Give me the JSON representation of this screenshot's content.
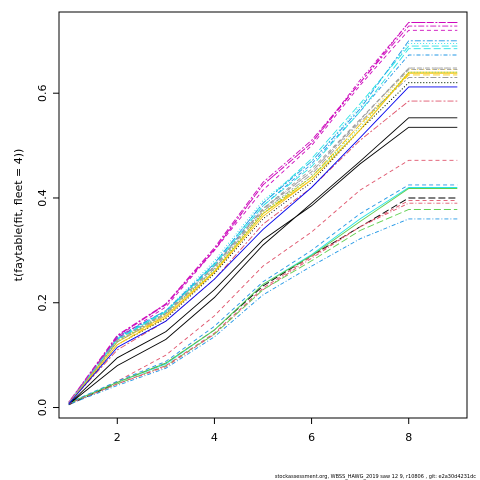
{
  "chart_data": {
    "type": "line",
    "title": "",
    "xlabel": "",
    "ylabel": "t(faytable(fit, fleet = 4))",
    "xlim": [
      0.8,
      9.2
    ],
    "ylim": [
      -0.02,
      0.755
    ],
    "x_ticks": [
      {
        "value": 2,
        "label": "2"
      },
      {
        "value": 4,
        "label": "4"
      },
      {
        "value": 6,
        "label": "6"
      },
      {
        "value": 8,
        "label": "8"
      }
    ],
    "y_ticks": [
      {
        "value": 0.0,
        "label": "0.0"
      },
      {
        "value": 0.2,
        "label": "0.2"
      },
      {
        "value": 0.4,
        "label": "0.4"
      },
      {
        "value": 0.6,
        "label": "0.6"
      }
    ],
    "grid": false,
    "legend": "none",
    "x": [
      1,
      2,
      3,
      4,
      5,
      6,
      7,
      8,
      9
    ],
    "series": [
      {
        "color": "#000000",
        "dash": "solid",
        "values": [
          0.006,
          0.095,
          0.145,
          0.225,
          0.32,
          0.385,
          0.465,
          0.535,
          0.535
        ]
      },
      {
        "color": "#df536b",
        "dash": "dashed",
        "values": [
          0.007,
          0.05,
          0.1,
          0.175,
          0.27,
          0.335,
          0.415,
          0.472,
          0.472
        ]
      },
      {
        "color": "#61d04f",
        "dash": "dotted",
        "values": [
          0.008,
          0.128,
          0.18,
          0.26,
          0.375,
          0.44,
          0.53,
          0.62,
          0.62
        ]
      },
      {
        "color": "#2297e6",
        "dash": "dotdash",
        "values": [
          0.009,
          0.133,
          0.185,
          0.27,
          0.385,
          0.465,
          0.565,
          0.673,
          0.673
        ]
      },
      {
        "color": "#28e2e5",
        "dash": "longdash",
        "values": [
          0.008,
          0.132,
          0.183,
          0.275,
          0.39,
          0.475,
          0.58,
          0.69,
          0.69
        ]
      },
      {
        "color": "#cd0bbc",
        "dash": "twodash",
        "values": [
          0.01,
          0.138,
          0.198,
          0.305,
          0.43,
          0.51,
          0.62,
          0.728,
          0.728
        ]
      },
      {
        "color": "#f5c710",
        "dash": "solid",
        "values": [
          0.008,
          0.125,
          0.175,
          0.26,
          0.37,
          0.435,
          0.53,
          0.64,
          0.64
        ]
      },
      {
        "color": "#9e9e9e",
        "dash": "dashed",
        "values": [
          0.009,
          0.13,
          0.18,
          0.27,
          0.38,
          0.455,
          0.55,
          0.648,
          0.648
        ]
      },
      {
        "color": "#000000",
        "dash": "dotted",
        "values": [
          0.006,
          0.12,
          0.17,
          0.255,
          0.36,
          0.43,
          0.53,
          0.62,
          0.62
        ]
      },
      {
        "color": "#df536b",
        "dash": "dotdash",
        "values": [
          0.006,
          0.045,
          0.078,
          0.14,
          0.225,
          0.285,
          0.345,
          0.39,
          0.39
        ]
      },
      {
        "color": "#61d04f",
        "dash": "longdash",
        "values": [
          0.007,
          0.045,
          0.08,
          0.14,
          0.225,
          0.28,
          0.338,
          0.378,
          0.378
        ]
      },
      {
        "color": "#2297e6",
        "dash": "twodash",
        "values": [
          0.008,
          0.135,
          0.185,
          0.275,
          0.39,
          0.47,
          0.57,
          0.7,
          0.7
        ]
      },
      {
        "color": "#28e2e5",
        "dash": "solid",
        "values": [
          0.009,
          0.048,
          0.083,
          0.148,
          0.235,
          0.292,
          0.36,
          0.42,
          0.42
        ]
      },
      {
        "color": "#cd0bbc",
        "dash": "dashed",
        "values": [
          0.01,
          0.132,
          0.192,
          0.3,
          0.415,
          0.5,
          0.615,
          0.72,
          0.72
        ]
      },
      {
        "color": "#f5c710",
        "dash": "dotted",
        "values": [
          0.008,
          0.128,
          0.178,
          0.265,
          0.372,
          0.44,
          0.54,
          0.645,
          0.645
        ]
      },
      {
        "color": "#9e9e9e",
        "dash": "dotdash",
        "values": [
          0.009,
          0.13,
          0.182,
          0.27,
          0.38,
          0.45,
          0.548,
          0.648,
          0.648
        ]
      },
      {
        "color": "#000000",
        "dash": "longdash",
        "values": [
          0.005,
          0.048,
          0.085,
          0.148,
          0.232,
          0.29,
          0.345,
          0.4,
          0.4
        ]
      },
      {
        "color": "#df536b",
        "dash": "twodash",
        "values": [
          0.008,
          0.11,
          0.165,
          0.245,
          0.35,
          0.42,
          0.51,
          0.585,
          0.585
        ]
      },
      {
        "color": "#61d04f",
        "dash": "solid",
        "values": [
          0.008,
          0.048,
          0.085,
          0.148,
          0.235,
          0.29,
          0.355,
          0.418,
          0.418
        ]
      },
      {
        "color": "#2297e6",
        "dash": "dashed",
        "values": [
          0.009,
          0.05,
          0.088,
          0.155,
          0.24,
          0.3,
          0.37,
          0.425,
          0.425
        ]
      },
      {
        "color": "#28e2e5",
        "dash": "dotted",
        "values": [
          0.009,
          0.13,
          0.185,
          0.28,
          0.395,
          0.47,
          0.575,
          0.695,
          0.695
        ]
      },
      {
        "color": "#cd0bbc",
        "dash": "dotdash",
        "values": [
          0.01,
          0.135,
          0.198,
          0.3,
          0.425,
          0.505,
          0.625,
          0.735,
          0.735
        ]
      },
      {
        "color": "#f5c710",
        "dash": "longdash",
        "values": [
          0.008,
          0.12,
          0.175,
          0.26,
          0.37,
          0.44,
          0.54,
          0.635,
          0.635
        ]
      },
      {
        "color": "#9e9e9e",
        "dash": "twodash",
        "values": [
          0.008,
          0.125,
          0.178,
          0.265,
          0.375,
          0.445,
          0.545,
          0.63,
          0.63
        ]
      },
      {
        "color": "#000000",
        "dash": "solid",
        "values": [
          0.006,
          0.08,
          0.13,
          0.21,
          0.31,
          0.39,
          0.47,
          0.553,
          0.553
        ]
      },
      {
        "color": "#df536b",
        "dash": "dashed",
        "values": [
          0.007,
          0.045,
          0.08,
          0.142,
          0.228,
          0.288,
          0.345,
          0.395,
          0.395
        ]
      },
      {
        "color": "#61d04f",
        "dash": "dotted",
        "values": [
          0.008,
          0.125,
          0.18,
          0.262,
          0.37,
          0.44,
          0.535,
          0.64,
          0.64
        ]
      },
      {
        "color": "#2297e6",
        "dash": "dotdash",
        "values": [
          0.006,
          0.042,
          0.075,
          0.135,
          0.215,
          0.27,
          0.322,
          0.36,
          0.36
        ]
      },
      {
        "color": "#28e2e5",
        "dash": "longdash",
        "values": [
          0.009,
          0.13,
          0.183,
          0.272,
          0.385,
          0.46,
          0.565,
          0.685,
          0.685
        ]
      },
      {
        "color": "#cd0bbc",
        "dash": "twodash",
        "values": [
          0.01,
          0.137,
          0.196,
          0.302,
          0.425,
          0.505,
          0.62,
          0.735,
          0.735
        ]
      },
      {
        "color": "#f5c710",
        "dash": "solid",
        "values": [
          0.008,
          0.12,
          0.172,
          0.258,
          0.365,
          0.435,
          0.53,
          0.638,
          0.638
        ]
      },
      {
        "color": "#9e9e9e",
        "dash": "dashed",
        "values": [
          0.009,
          0.128,
          0.18,
          0.268,
          0.378,
          0.45,
          0.55,
          0.645,
          0.645
        ]
      },
      {
        "color": "#0000ee",
        "dash": "solid",
        "values": [
          0.007,
          0.115,
          0.165,
          0.245,
          0.34,
          0.42,
          0.515,
          0.612,
          0.612
        ]
      }
    ]
  },
  "footer": {
    "text": "stockassessment.org, WBSS_HAWG_2019 saw 12 9, r10806 , git: e2a30d4231dc"
  }
}
